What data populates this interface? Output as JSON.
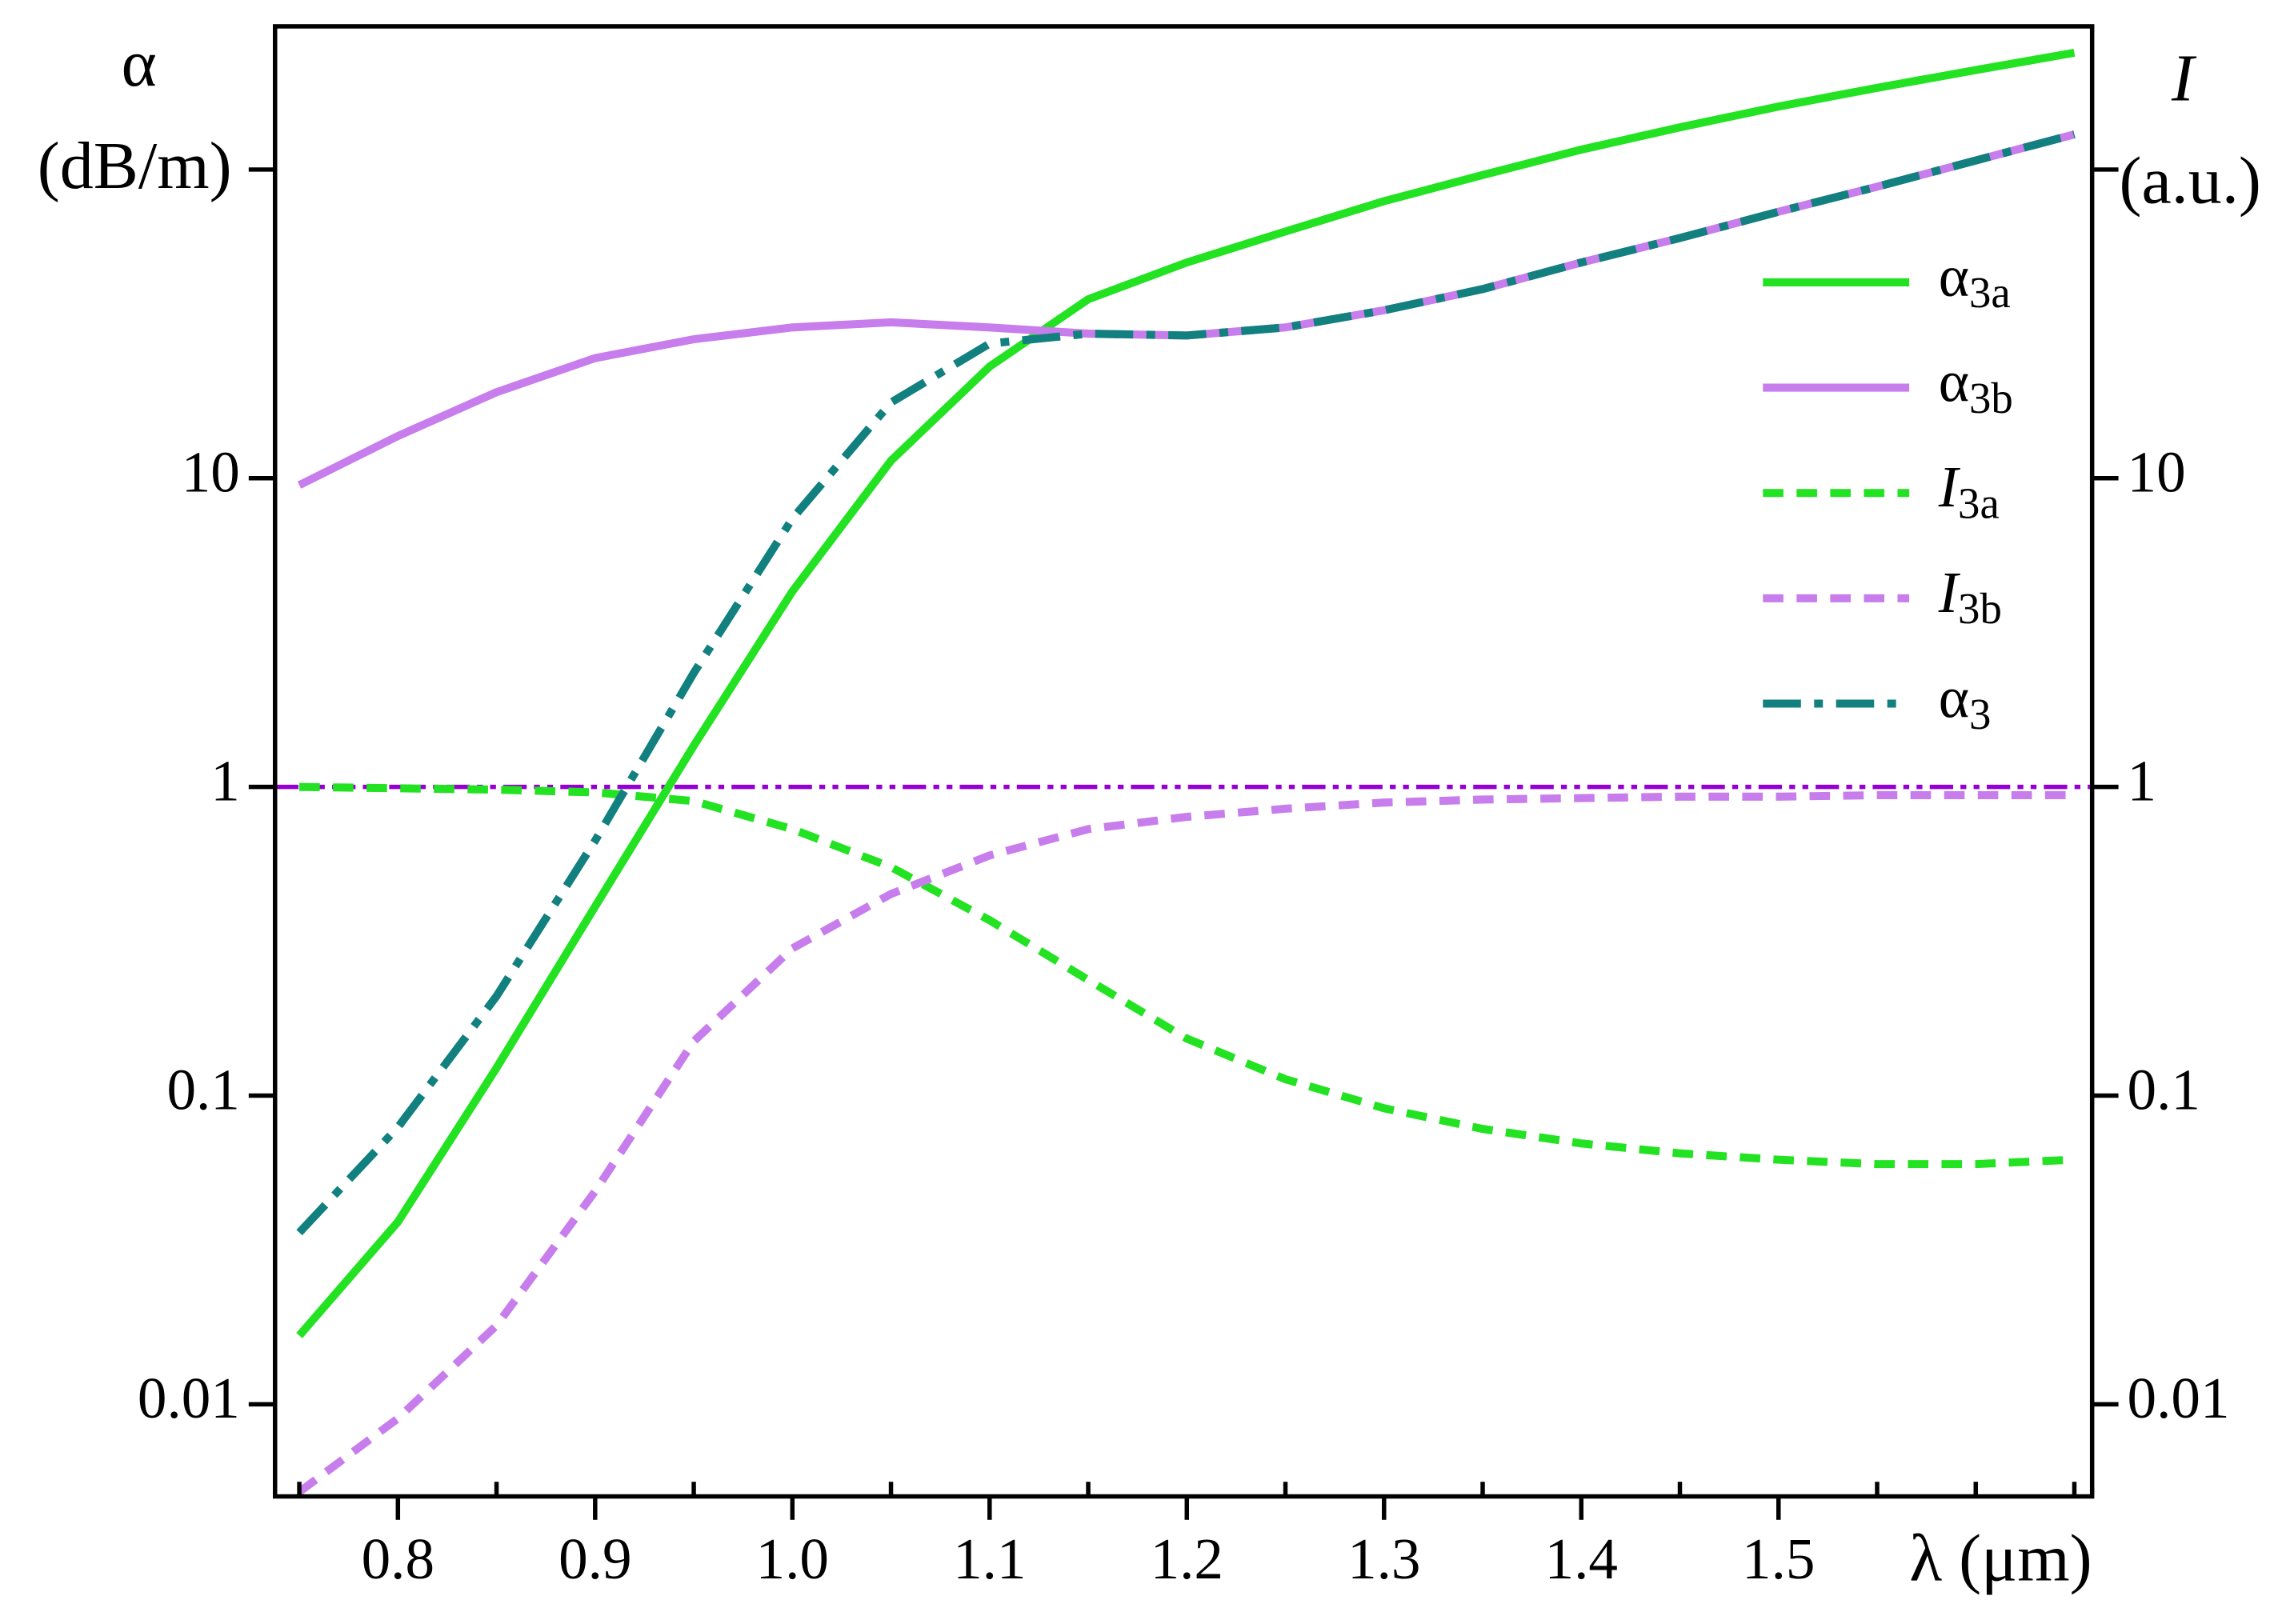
{
  "chart_data": {
    "type": "line",
    "y_label": "α",
    "y_unit": "(dB/m)",
    "y2_label": "I",
    "y2_unit": "(a.u.)",
    "x_label": "λ (μm)",
    "x": [
      0.75,
      0.8,
      0.85,
      0.9,
      0.95,
      1.0,
      1.05,
      1.1,
      1.15,
      1.2,
      1.25,
      1.3,
      1.35,
      1.4,
      1.45,
      1.5,
      1.55,
      1.6,
      1.65
    ],
    "series": [
      {
        "name": "α3a",
        "color": "#22e222",
        "style": "solid",
        "values": [
          0.0167,
          0.039,
          0.123,
          0.41,
          1.36,
          4.3,
          11.4,
          23,
          38,
          50,
          63,
          79,
          96,
          116,
          137,
          160,
          184,
          210,
          239
        ]
      },
      {
        "name": "α3b",
        "color": "#c77dec",
        "style": "solid",
        "values": [
          9.5,
          13.7,
          19,
          24.5,
          28.2,
          30.8,
          32,
          30.8,
          29.4,
          29,
          30.8,
          35,
          41,
          50,
          60,
          73,
          88,
          107,
          130
        ]
      },
      {
        "name": "I3a",
        "color": "#22e222",
        "style": "dashed",
        "axis": "y2",
        "values": [
          1,
          0.99,
          0.98,
          0.96,
          0.9,
          0.73,
          0.55,
          0.37,
          0.237,
          0.153,
          0.113,
          0.091,
          0.078,
          0.07,
          0.065,
          0.062,
          0.06,
          0.06,
          0.062
        ]
      },
      {
        "name": "I3b",
        "color": "#c77dec",
        "style": "dashed",
        "axis": "y2",
        "values": [
          0.0052,
          0.009,
          0.018,
          0.049,
          0.15,
          0.3,
          0.45,
          0.6,
          0.73,
          0.8,
          0.85,
          0.89,
          0.91,
          0.92,
          0.93,
          0.93,
          0.94,
          0.94,
          0.94
        ]
      },
      {
        "name": "α3",
        "color": "#12807f",
        "style": "dashdot",
        "values": [
          0.036,
          0.079,
          0.21,
          0.67,
          2.34,
          7.4,
          17.6,
          27.3,
          29.4,
          29,
          30.8,
          35,
          41,
          50,
          60,
          73,
          88,
          107,
          130
        ]
      }
    ],
    "reference_line": {
      "value": 1,
      "color": "#9400d3"
    },
    "xlim": [
      0.7377,
      1.659
    ],
    "xticks": [
      0.8,
      0.9,
      {
        "value": 1.0,
        "label": "1.0"
      },
      1.1,
      1.2,
      1.3,
      1.4,
      1.5
    ],
    "xminorticks": [
      0.75,
      0.85,
      0.95,
      1.05,
      1.15,
      1.25,
      1.35,
      1.45,
      1.55,
      1.6,
      1.65
    ],
    "ylim": [
      0.00503,
      291
    ],
    "yticks": [
      0.01,
      0.1,
      1,
      10
    ],
    "yminorticks": [
      100
    ],
    "y2lim": [
      0.00503,
      291
    ],
    "y2ticks": [
      0.01,
      0.1,
      1,
      10
    ],
    "y2minorticks": [
      100
    ],
    "log_y": true,
    "legend": "upper right"
  }
}
